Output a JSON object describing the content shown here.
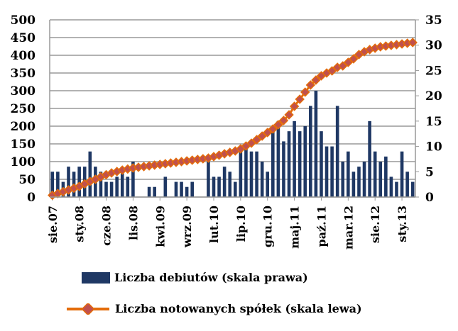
{
  "chart_data": {
    "type": "bar+line",
    "x_tick_labels": [
      "sie.07",
      "sty.08",
      "cze.08",
      "lis.08",
      "kwi.09",
      "wrz.09",
      "lut.10",
      "lip.10",
      "gru.10",
      "maj.11",
      "paź.11",
      "mar.12",
      "sie.12",
      "sty.13"
    ],
    "left_axis": {
      "ylim": [
        0,
        500
      ],
      "ticks": [
        0,
        50,
        100,
        150,
        200,
        250,
        300,
        350,
        400,
        450,
        500
      ]
    },
    "right_axis": {
      "ylim": [
        0,
        35
      ],
      "ticks": [
        0,
        5,
        10,
        15,
        20,
        25,
        30,
        35
      ]
    },
    "grid": true,
    "series": [
      {
        "name": "Liczba debiutów (skala prawa)",
        "type": "bar",
        "axis": "right",
        "color": "#1f3864",
        "values": [
          5,
          5,
          3,
          6,
          5,
          6,
          6,
          9,
          6,
          5,
          3,
          3,
          4,
          5,
          4,
          7,
          0,
          0,
          2,
          2,
          0,
          4,
          0,
          3,
          3,
          2,
          3,
          0,
          0,
          7,
          4,
          4,
          6,
          5,
          3,
          9,
          10,
          9,
          9,
          7,
          5,
          13,
          15,
          11,
          13,
          15,
          13,
          14,
          18,
          21,
          13,
          10,
          10,
          18,
          7,
          9,
          5,
          6,
          7,
          15,
          9,
          7,
          8,
          4,
          3,
          9,
          5,
          3
        ]
      },
      {
        "name": "Liczba notowanych spółek (skala lewa)",
        "type": "line",
        "axis": "left",
        "color": "#e46c0a",
        "marker_color": "#c0504d",
        "values": [
          5,
          10,
          15,
          20,
          25,
          30,
          37,
          44,
          50,
          57,
          63,
          68,
          72,
          76,
          79,
          82,
          84,
          86,
          88,
          90,
          92,
          94,
          96,
          98,
          100,
          102,
          104,
          106,
          108,
          110,
          114,
          118,
          122,
          126,
          130,
          136,
          144,
          152,
          162,
          172,
          182,
          192,
          204,
          216,
          232,
          256,
          276,
          296,
          316,
          330,
          342,
          350,
          356,
          366,
          370,
          380,
          390,
          402,
          410,
          416,
          420,
          424,
          426,
          428,
          430,
          432,
          434,
          436
        ]
      }
    ],
    "legend_position": "bottom"
  }
}
